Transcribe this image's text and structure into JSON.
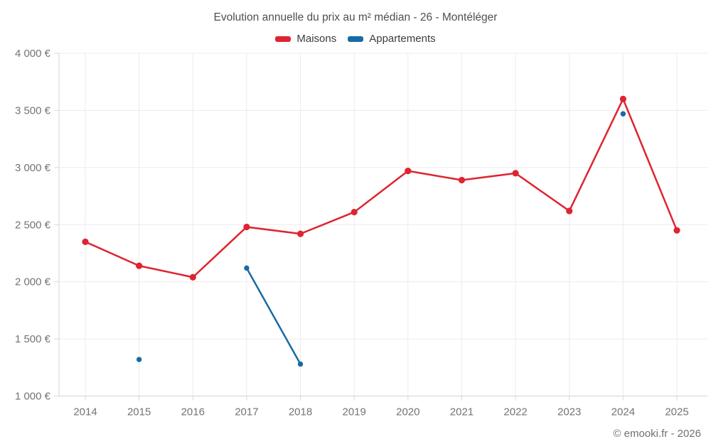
{
  "title": "Evolution annuelle du prix au m² médian - 26 - Montéléger",
  "footer": "© emooki.fr - 2026",
  "legend": [
    {
      "label": "Maisons",
      "color": "#de2430"
    },
    {
      "label": "Appartements",
      "color": "#166ba4"
    }
  ],
  "colors": {
    "maisons": "#de2430",
    "appartements": "#166ba4",
    "grid": "#ececec",
    "axis": "#d4d4d4",
    "tick": "#d9d9d9",
    "tick_label": "#737373"
  },
  "chart_data": {
    "type": "line",
    "title": "Evolution annuelle du prix au m² médian - 26 - Montéléger",
    "xlabel": "",
    "ylabel": "",
    "categories": [
      "2014",
      "2015",
      "2016",
      "2017",
      "2018",
      "2019",
      "2020",
      "2021",
      "2022",
      "2023",
      "2024",
      "2025"
    ],
    "series": [
      {
        "name": "Maisons",
        "color": "#de2430",
        "marker_radius": 4.6,
        "values": [
          2350,
          2140,
          2040,
          2480,
          2420,
          2610,
          2970,
          2890,
          2950,
          2620,
          3600,
          2450
        ]
      },
      {
        "name": "Appartements",
        "color": "#166ba4",
        "marker_radius": 3.7,
        "values": [
          null,
          1320,
          null,
          2120,
          1280,
          null,
          null,
          null,
          null,
          null,
          3470,
          null
        ]
      }
    ],
    "ylim": [
      1000,
      4000
    ],
    "y_ticks": [
      {
        "value": 1000,
        "label": "1 000 €"
      },
      {
        "value": 1500,
        "label": "1 500 €"
      },
      {
        "value": 2000,
        "label": "2 000 €"
      },
      {
        "value": 2500,
        "label": "2 500 €"
      },
      {
        "value": 3000,
        "label": "3 000 €"
      },
      {
        "value": 3500,
        "label": "3 500 €"
      },
      {
        "value": 4000,
        "label": "4 000 €"
      }
    ],
    "grid": true,
    "legend_position": "top"
  }
}
